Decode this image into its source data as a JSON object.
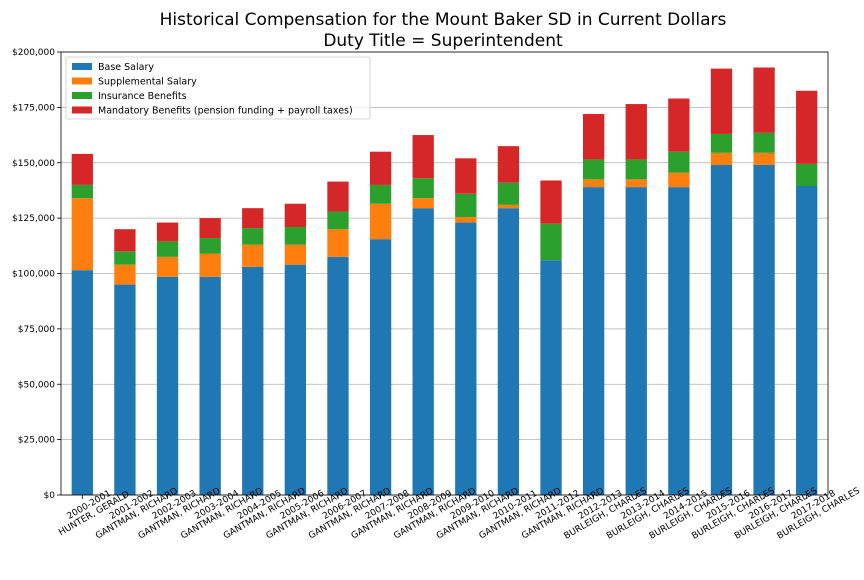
{
  "chart_data": {
    "type": "bar",
    "stacked": true,
    "title": "Historical Compensation for the Mount Baker SD in Current Dollars",
    "subtitle": "Duty Title = Superintendent",
    "xlabel": "",
    "ylabel": "",
    "ylim": [
      0,
      200000
    ],
    "yticks": [
      0,
      25000,
      50000,
      75000,
      100000,
      125000,
      150000,
      175000,
      200000
    ],
    "ytick_labels": [
      "$0",
      "$25,000",
      "$50,000",
      "$75,000",
      "$100,000",
      "$125,000",
      "$150,000",
      "$175,000",
      "$200,000"
    ],
    "grid": "horizontal",
    "legend_position": "top-left",
    "categories": [
      "2000-2001\nHUNTER, GERALD",
      "2001-2002\nGANTMAN, RICHARD",
      "2002-2003\nGANTMAN, RICHARD",
      "2003-2004\nGANTMAN, RICHARD",
      "2004-2005\nGANTMAN, RICHARD",
      "2005-2006\nGANTMAN, RICHARD",
      "2006-2007\nGANTMAN, RICHARD",
      "2007-2008\nGANTMAN, RICHARD",
      "2008-2009\nGANTMAN, RICHARD",
      "2009-2010\nGANTMAN, RICHARD",
      "2010-2011\nGANTMAN, RICHARD",
      "2011-2012\nGANTMAN, RICHARD",
      "2012-2013\nBURLEIGH, CHARLES",
      "2013-2014\nBURLEIGH, CHARLES",
      "2014-2015\nBURLEIGH, CHARLES",
      "2015-2016\nBURLEIGH, CHARLES",
      "2016-2017\nBURLEIGH, CHARLES",
      "2017-2018\nBURLEIGH, CHARLES"
    ],
    "series": [
      {
        "name": "Base Salary",
        "color": "#1f77b4",
        "values": [
          101500,
          95000,
          98500,
          98500,
          103000,
          104000,
          107500,
          115500,
          129500,
          123000,
          129500,
          106000,
          139000,
          139000,
          139000,
          149000,
          149000,
          139500
        ]
      },
      {
        "name": "Supplemental Salary",
        "color": "#ff7f0e",
        "values": [
          32500,
          9000,
          9000,
          10500,
          10000,
          9000,
          12500,
          16000,
          4500,
          2500,
          1500,
          0,
          3500,
          3500,
          6500,
          5500,
          5500,
          0
        ]
      },
      {
        "name": "Insurance Benefits",
        "color": "#2ca02c",
        "values": [
          6000,
          6000,
          7000,
          7000,
          7500,
          8000,
          8000,
          8500,
          9000,
          10500,
          10000,
          16500,
          9000,
          9000,
          9500,
          8500,
          9000,
          10000
        ]
      },
      {
        "name": "Mandatory Benefits (pension funding + payroll taxes)",
        "color": "#d62728",
        "values": [
          14000,
          10000,
          8500,
          9000,
          9000,
          10500,
          13500,
          15000,
          19500,
          16000,
          16500,
          19500,
          20500,
          25000,
          24000,
          29500,
          29500,
          33000
        ]
      }
    ]
  }
}
